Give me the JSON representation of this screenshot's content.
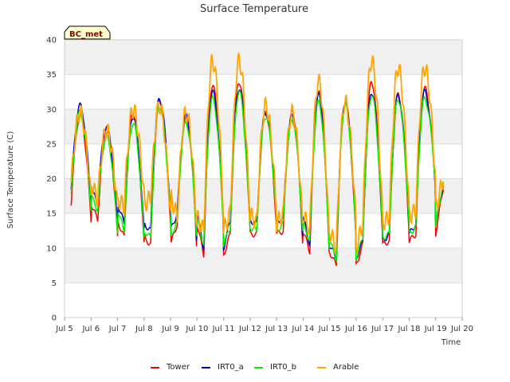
{
  "chart_data": {
    "type": "line",
    "title": "Surface Temperature",
    "xlabel": "Time",
    "ylabel": "Surface Temperature (C)",
    "badge": "BC_met",
    "ylim": [
      0,
      40
    ],
    "yticks": [
      0,
      5,
      10,
      15,
      20,
      25,
      30,
      35,
      40
    ],
    "xlim": [
      5,
      20
    ],
    "xticks": [
      5,
      6,
      7,
      8,
      9,
      10,
      11,
      12,
      13,
      14,
      15,
      16,
      17,
      18,
      19,
      20
    ],
    "xtick_labels": [
      "Jul 5",
      "Jul 6",
      "Jul 7",
      "Jul 8",
      "Jul 9",
      "Jul 10",
      "Jul 11",
      "Jul 12",
      "Jul 13",
      "Jul 14",
      "Jul 15",
      "Jul 16",
      "Jul 17",
      "Jul 18",
      "Jul 19",
      "Jul 20"
    ],
    "grid": true,
    "legend_position": "bottom",
    "daily_profile": {
      "days": [
        5.25,
        6,
        7,
        8,
        9,
        10,
        11,
        12,
        13,
        14,
        15,
        16,
        17,
        18,
        19
      ],
      "series": [
        {
          "name": "Tower",
          "color": "#ff0000",
          "max": [
            29.0,
            27.0,
            29.5,
            31.0,
            29.0,
            33.5,
            34.0,
            29.5,
            29.5,
            32.5,
            31.0,
            34.0,
            32.0,
            33.0,
            22.0
          ],
          "min": [
            16.5,
            14.0,
            11.5,
            10.5,
            13.5,
            9.0,
            12.0,
            12.0,
            12.5,
            9.5,
            7.5,
            10.5,
            11.0,
            12.0,
            18.0
          ]
        },
        {
          "name": "IRT0_a",
          "color": "#0000cc",
          "max": [
            30.5,
            27.5,
            29.0,
            31.5,
            29.0,
            32.5,
            33.0,
            29.5,
            29.0,
            32.0,
            31.0,
            32.5,
            32.0,
            32.5,
            22.0
          ],
          "min": [
            18.5,
            16.5,
            13.5,
            12.5,
            15.0,
            10.0,
            14.0,
            13.5,
            14.5,
            10.5,
            8.5,
            11.0,
            12.0,
            13.5,
            18.5
          ]
        },
        {
          "name": "IRT0_b",
          "color": "#00ee00",
          "max": [
            29.5,
            26.0,
            28.0,
            30.5,
            28.0,
            31.5,
            32.5,
            29.0,
            28.5,
            31.0,
            30.5,
            32.0,
            31.5,
            31.5,
            21.0
          ],
          "min": [
            17.5,
            15.5,
            12.5,
            11.5,
            14.0,
            10.5,
            13.0,
            12.5,
            13.5,
            11.0,
            8.5,
            11.5,
            12.0,
            13.0,
            19.0
          ]
        },
        {
          "name": "Arable",
          "color": "#ffa500",
          "max": [
            29.5,
            27.0,
            30.0,
            30.5,
            29.5,
            37.0,
            37.0,
            30.5,
            29.5,
            34.0,
            31.0,
            37.0,
            36.0,
            36.0,
            22.5
          ],
          "min": [
            19.5,
            17.0,
            16.0,
            17.5,
            14.5,
            12.5,
            15.0,
            13.5,
            15.0,
            12.5,
            10.0,
            13.5,
            14.5,
            15.5,
            19.5
          ]
        }
      ]
    }
  }
}
